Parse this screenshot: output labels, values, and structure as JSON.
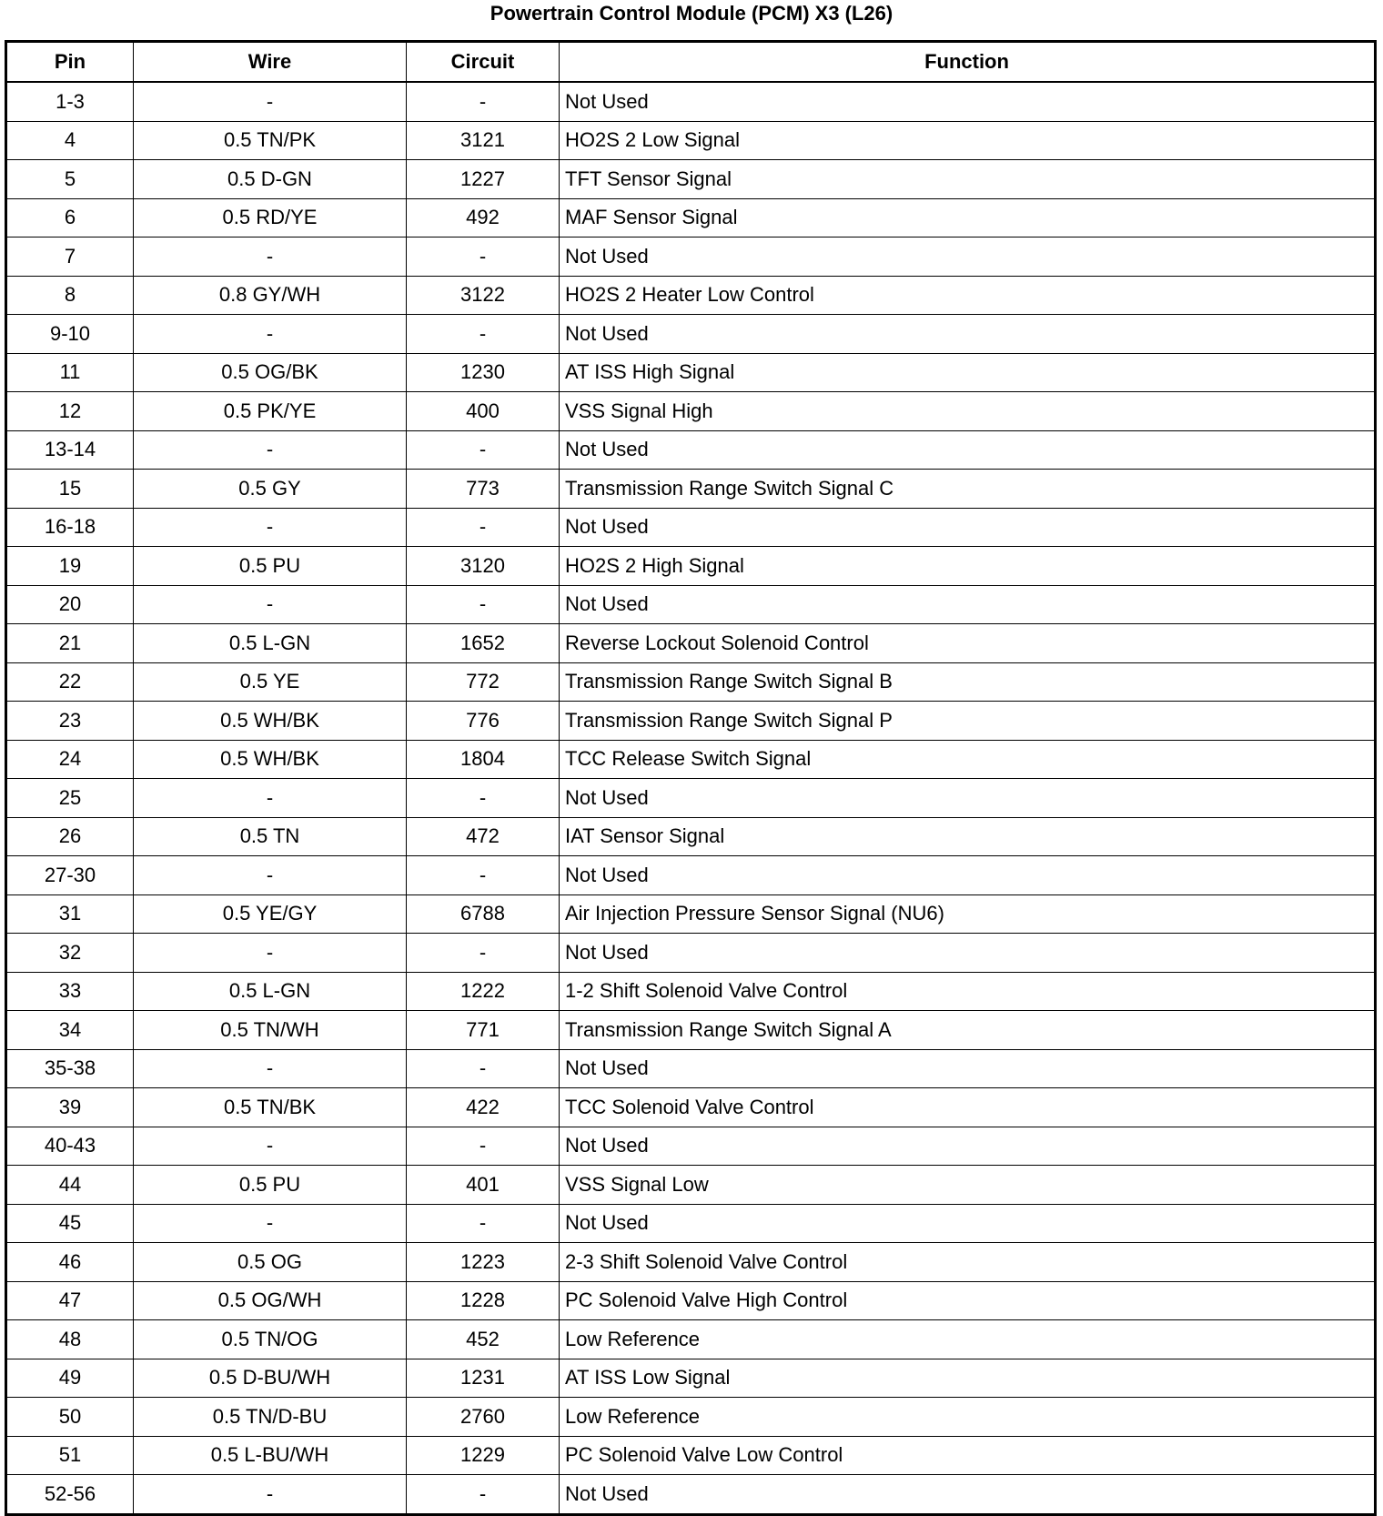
{
  "title": "Powertrain Control Module (PCM) X3 (L26)",
  "columns": [
    "Pin",
    "Wire",
    "Circuit",
    "Function"
  ],
  "rows": [
    [
      "1-3",
      "-",
      "-",
      "Not Used"
    ],
    [
      "4",
      "0.5 TN/PK",
      "3121",
      "HO2S 2 Low Signal"
    ],
    [
      "5",
      "0.5 D-GN",
      "1227",
      "TFT Sensor Signal"
    ],
    [
      "6",
      "0.5 RD/YE",
      "492",
      "MAF Sensor Signal"
    ],
    [
      "7",
      "-",
      "-",
      "Not Used"
    ],
    [
      "8",
      "0.8 GY/WH",
      "3122",
      "HO2S 2 Heater Low Control"
    ],
    [
      "9-10",
      "-",
      "-",
      "Not Used"
    ],
    [
      "11",
      "0.5 OG/BK",
      "1230",
      "AT ISS High Signal"
    ],
    [
      "12",
      "0.5 PK/YE",
      "400",
      "VSS Signal High"
    ],
    [
      "13-14",
      "-",
      "-",
      "Not Used"
    ],
    [
      "15",
      "0.5 GY",
      "773",
      "Transmission Range Switch Signal C"
    ],
    [
      "16-18",
      "-",
      "-",
      "Not Used"
    ],
    [
      "19",
      "0.5 PU",
      "3120",
      "HO2S 2 High Signal"
    ],
    [
      "20",
      "-",
      "-",
      "Not Used"
    ],
    [
      "21",
      "0.5 L-GN",
      "1652",
      "Reverse Lockout Solenoid Control"
    ],
    [
      "22",
      "0.5 YE",
      "772",
      "Transmission Range Switch Signal B"
    ],
    [
      "23",
      "0.5 WH/BK",
      "776",
      "Transmission Range Switch Signal P"
    ],
    [
      "24",
      "0.5 WH/BK",
      "1804",
      "TCC Release Switch Signal"
    ],
    [
      "25",
      "-",
      "-",
      "Not Used"
    ],
    [
      "26",
      "0.5 TN",
      "472",
      "IAT Sensor Signal"
    ],
    [
      "27-30",
      "-",
      "-",
      "Not Used"
    ],
    [
      "31",
      "0.5 YE/GY",
      "6788",
      "Air Injection Pressure Sensor Signal (NU6)"
    ],
    [
      "32",
      "-",
      "-",
      "Not Used"
    ],
    [
      "33",
      "0.5 L-GN",
      "1222",
      "1-2 Shift Solenoid Valve Control"
    ],
    [
      "34",
      "0.5 TN/WH",
      "771",
      "Transmission Range Switch Signal A"
    ],
    [
      "35-38",
      "-",
      "-",
      "Not Used"
    ],
    [
      "39",
      "0.5 TN/BK",
      "422",
      "TCC Solenoid Valve Control"
    ],
    [
      "40-43",
      "-",
      "-",
      "Not Used"
    ],
    [
      "44",
      "0.5 PU",
      "401",
      "VSS Signal Low"
    ],
    [
      "45",
      "-",
      "-",
      "Not Used"
    ],
    [
      "46",
      "0.5 OG",
      "1223",
      "2-3 Shift Solenoid Valve Control"
    ],
    [
      "47",
      "0.5 OG/WH",
      "1228",
      "PC Solenoid Valve High Control"
    ],
    [
      "48",
      "0.5 TN/OG",
      "452",
      "Low Reference"
    ],
    [
      "49",
      "0.5 D-BU/WH",
      "1231",
      "AT ISS Low Signal"
    ],
    [
      "50",
      "0.5 TN/D-BU",
      "2760",
      "Low Reference"
    ],
    [
      "51",
      "0.5 L-BU/WH",
      "1229",
      "PC Solenoid Valve Low Control"
    ],
    [
      "52-56",
      "-",
      "-",
      "Not Used"
    ]
  ]
}
